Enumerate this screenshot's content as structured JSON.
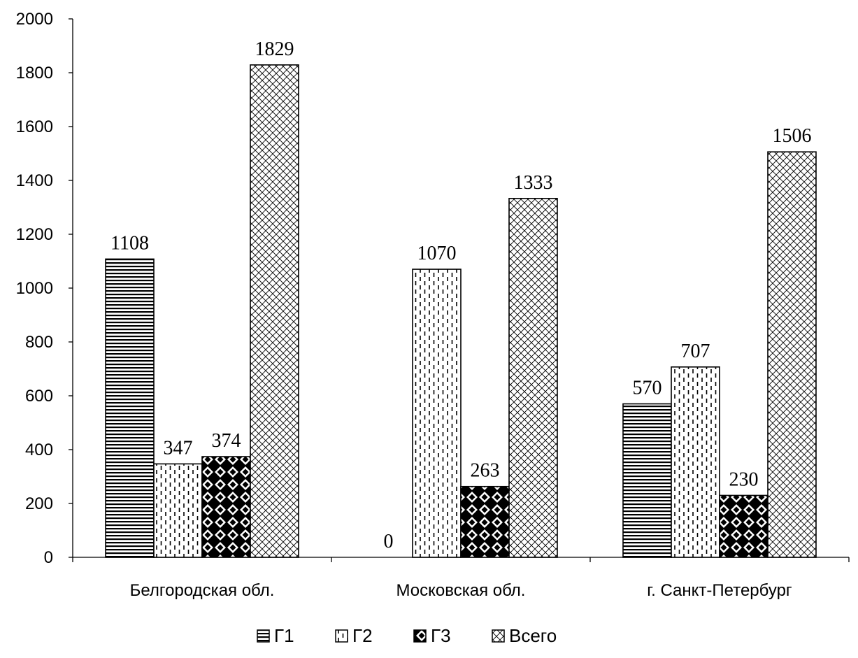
{
  "chart_data": {
    "type": "bar",
    "title": "",
    "xlabel": "",
    "ylabel": "",
    "ylim": [
      0,
      2000
    ],
    "yticks": [
      0,
      200,
      400,
      600,
      800,
      1000,
      1200,
      1400,
      1600,
      1800,
      2000
    ],
    "grid": false,
    "legend_position": "bottom",
    "categories": [
      "Белгородская обл.",
      "Московская обл.",
      "г. Санкт-Петербург"
    ],
    "series": [
      {
        "name": "Г1",
        "pattern": "horizontal-lines",
        "values": [
          1108,
          0,
          570
        ]
      },
      {
        "name": "Г2",
        "pattern": "dashed-vertical",
        "values": [
          347,
          1070,
          707
        ]
      },
      {
        "name": "Г3",
        "pattern": "checker-diamond",
        "values": [
          374,
          263,
          230
        ]
      },
      {
        "name": "Всего",
        "pattern": "crosshatch",
        "values": [
          1829,
          1333,
          1506
        ]
      }
    ]
  }
}
